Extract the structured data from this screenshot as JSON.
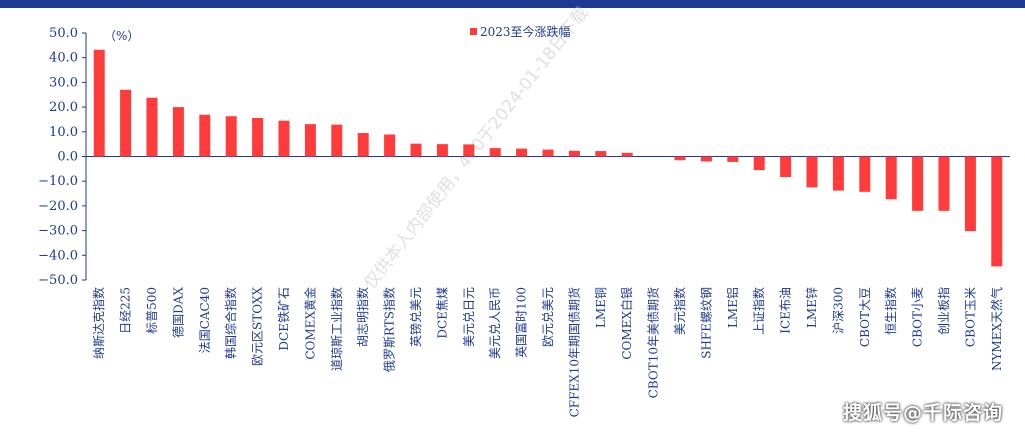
{
  "chart_data": {
    "type": "bar",
    "unit_label": "（%）",
    "series": [
      {
        "name": "2023至今涨跌幅",
        "color": "#ff3b3b",
        "values": [
          43.2,
          27.0,
          23.8,
          20.0,
          16.9,
          16.3,
          15.6,
          14.5,
          13.1,
          12.9,
          9.5,
          8.9,
          5.2,
          5.0,
          4.9,
          3.4,
          3.2,
          2.8,
          2.3,
          2.2,
          1.5,
          0.0,
          -1.5,
          -2.0,
          -2.2,
          -5.5,
          -8.3,
          -12.5,
          -13.8,
          -14.3,
          -17.3,
          -22.0,
          -22.0,
          -30.2,
          -44.5
        ]
      }
    ],
    "categories": [
      "纳斯达克指数",
      "日经225",
      "标普500",
      "德国DAX",
      "法国CAC40",
      "韩国综合指数",
      "欧元区STOXX",
      "DCE铁矿石",
      "COMEX黄金",
      "道琼斯工业指数",
      "胡志明指数",
      "俄罗斯RTS指数",
      "英镑兑美元",
      "DCE焦煤",
      "美元兑日元",
      "美元兑人民币",
      "英国富时100",
      "欧元兑美元",
      "CFFEX10年期国债期货",
      "LME铜",
      "COMEX白银",
      "CBOT10年美债期货",
      "美元指数",
      "SHFE螺纹钢",
      "LME铝",
      "上证指数",
      "ICE布油",
      "LME锌",
      "沪深300",
      "CBOT大豆",
      "恒生指数",
      "CBOT小麦",
      "创业板指",
      "CBOT玉米",
      "NYMEX天然气"
    ],
    "yticks": [
      "50.0",
      "40.0",
      "30.0",
      "20.0",
      "10.0",
      "0.0",
      "−10.0",
      "−20.0",
      "−30.0",
      "−40.0",
      "−50.0"
    ],
    "ylim": [
      -50,
      50
    ],
    "legend_position": "top-center",
    "grid": false,
    "axis_color": "#1f3a93"
  },
  "watermark": "仅供本人内部使用，470于2024-01-18日下载",
  "footer": "搜狐号@千际咨询"
}
